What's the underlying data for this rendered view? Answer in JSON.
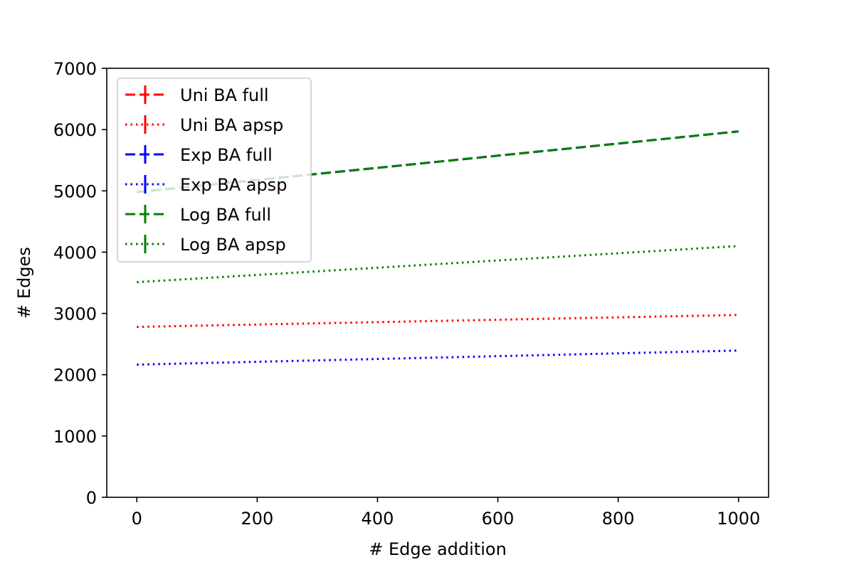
{
  "chart_data": {
    "type": "line",
    "title": "",
    "xlabel": "# Edge addition",
    "ylabel": "# Edges",
    "xlim": [
      -50,
      1050
    ],
    "ylim": [
      0,
      7000
    ],
    "xticks": [
      0,
      200,
      400,
      600,
      800,
      1000
    ],
    "yticks": [
      0,
      1000,
      2000,
      3000,
      4000,
      5000,
      6000,
      7000
    ],
    "grid": false,
    "legend_position": "upper-left",
    "x": [
      0,
      1000
    ],
    "series": [
      {
        "name": "Uni BA full",
        "values": [
          4980,
          5970
        ],
        "color": "#ff0000",
        "style": "dashed"
      },
      {
        "name": "Uni BA apsp",
        "values": [
          2780,
          2975
        ],
        "color": "#ff0000",
        "style": "dotted"
      },
      {
        "name": "Exp BA full",
        "values": [
          4980,
          5970
        ],
        "color": "#0000ff",
        "style": "dashed"
      },
      {
        "name": "Exp BA apsp",
        "values": [
          2165,
          2395
        ],
        "color": "#0000ff",
        "style": "dotted"
      },
      {
        "name": "Log BA full",
        "values": [
          4980,
          5970
        ],
        "color": "#008000",
        "style": "dashed"
      },
      {
        "name": "Log BA apsp",
        "values": [
          3510,
          4100
        ],
        "color": "#008000",
        "style": "dotted"
      }
    ]
  }
}
